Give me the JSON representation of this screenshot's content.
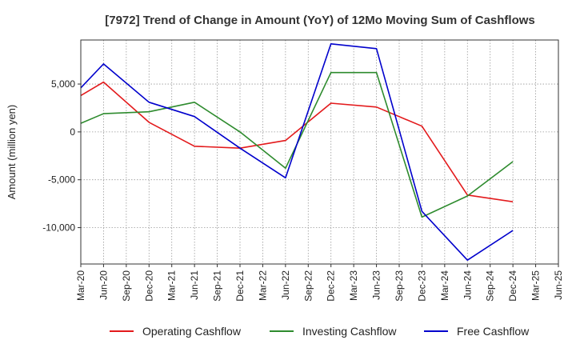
{
  "chart_data": {
    "type": "line",
    "title": "[7972]  Trend of Change in Amount (YoY) of 12Mo Moving Sum of Cashflows",
    "xlabel": "",
    "ylabel": "Amount (million yen)",
    "categories": [
      "Mar-20",
      "Jun-20",
      "Sep-20",
      "Dec-20",
      "Mar-21",
      "Jun-21",
      "Sep-21",
      "Dec-21",
      "Mar-22",
      "Jun-22",
      "Sep-22",
      "Dec-22",
      "Mar-23",
      "Jun-23",
      "Sep-23",
      "Dec-23",
      "Mar-24",
      "Jun-24",
      "Sep-24",
      "Dec-24",
      "Mar-25",
      "Jun-25"
    ],
    "ylim": [
      -13800,
      9600
    ],
    "yticks": [
      5000,
      0,
      -5000,
      -10000
    ],
    "ytick_labels": [
      "5,000",
      "0",
      "-5,000",
      "-10,000"
    ],
    "grid": true,
    "legend_position": "bottom",
    "series": [
      {
        "name": "Operating Cashflow",
        "color": "#e31a1c",
        "values": [
          3800,
          5200,
          null,
          1000,
          null,
          -1500,
          null,
          -1700,
          null,
          -900,
          null,
          3000,
          null,
          2600,
          null,
          600,
          null,
          -6600,
          null,
          -7300,
          null,
          null
        ]
      },
      {
        "name": "Investing Cashflow",
        "color": "#2e8b2e",
        "values": [
          900,
          1900,
          null,
          2100,
          null,
          3100,
          null,
          0,
          null,
          -3800,
          null,
          6200,
          null,
          6200,
          null,
          -8900,
          null,
          -6700,
          null,
          -3100,
          null,
          null
        ]
      },
      {
        "name": "Free Cashflow",
        "color": "#0000cc",
        "values": [
          4600,
          7100,
          null,
          3100,
          null,
          1600,
          null,
          -1700,
          null,
          -4800,
          null,
          9200,
          null,
          8700,
          null,
          -8300,
          null,
          -13400,
          null,
          -10300,
          null,
          null
        ]
      }
    ]
  }
}
